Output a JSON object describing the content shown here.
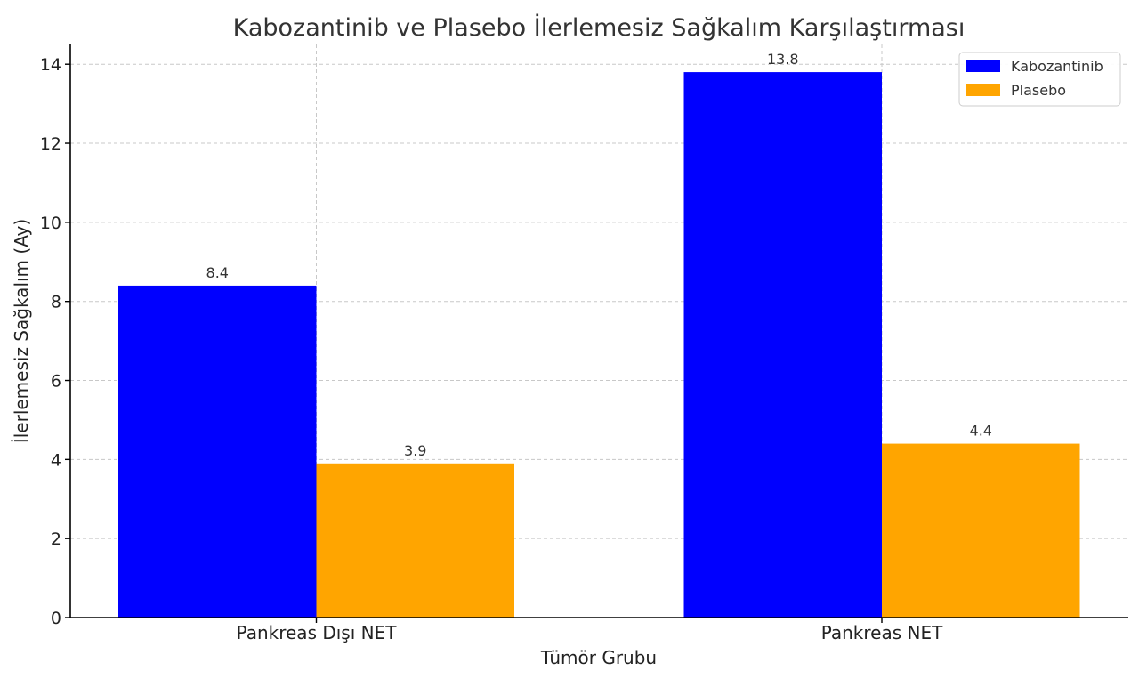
{
  "chart_data": {
    "type": "bar",
    "title": "Kabozantinib ve Plasebo İlerlemesiz Sağkalım Karşılaştırması",
    "xlabel": "Tümör Grubu",
    "ylabel": "İlerlemesiz Sağkalım (Ay)",
    "categories": [
      "Pankreas Dışı NET",
      "Pankreas NET"
    ],
    "series": [
      {
        "name": "Kabozantinib",
        "color": "#0000ff",
        "values": [
          8.4,
          13.8
        ]
      },
      {
        "name": "Plasebo",
        "color": "#ffa500",
        "values": [
          3.9,
          4.4
        ]
      }
    ],
    "ylim": [
      0,
      14.5
    ],
    "yticks": [
      0,
      2,
      4,
      6,
      8,
      10,
      12,
      14
    ],
    "grid": true,
    "legend_position": "top-right"
  }
}
